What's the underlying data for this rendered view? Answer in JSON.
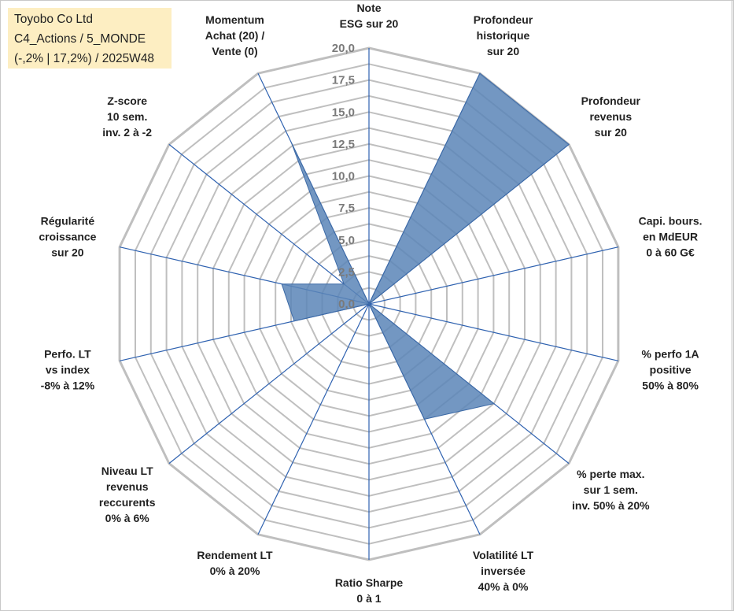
{
  "info": {
    "company": "Toyobo Co Ltd",
    "portfolio": "C4_Actions / 5_MONDE",
    "period": "(-,2% | 17,2%) / 2025W48"
  },
  "colors": {
    "fill": "#5b85b7",
    "stroke": "#3d6aa6",
    "grid": "#bfbfbf",
    "spoke": "#2f62b0",
    "info_bg": "#fdeec2"
  },
  "chart_data": {
    "type": "radar",
    "title": "",
    "rmin": 0,
    "rmax": 20,
    "ticks": [
      "0,0",
      "2,5",
      "5,0",
      "7,5",
      "10,0",
      "12,5",
      "15,0",
      "17,5",
      "20,0"
    ],
    "axes": [
      {
        "label": [
          "Note",
          "ESG sur 20"
        ],
        "value": 0
      },
      {
        "label": [
          "Profondeur",
          "historique",
          "sur 20"
        ],
        "value": 20
      },
      {
        "label": [
          "Profondeur",
          "revenus",
          "sur 20"
        ],
        "value": 20
      },
      {
        "label": [
          "Capi. bours.",
          "en MdEUR",
          "0 à 60 G€"
        ],
        "value": 0
      },
      {
        "label": [
          "% perfo 1A",
          "positive",
          "50% à 80%"
        ],
        "value": 0
      },
      {
        "label": [
          "% perte max.",
          "sur 1 sem.",
          "inv. 50% à 20%"
        ],
        "value": 12.5
      },
      {
        "label": [
          "Volatilité LT",
          "inversée",
          "40% à 0%"
        ],
        "value": 10
      },
      {
        "label": [
          "Ratio Sharpe",
          "0 à 1"
        ],
        "value": 0
      },
      {
        "label": [
          "Rendement LT",
          "0% à 20%"
        ],
        "value": 0
      },
      {
        "label": [
          "Niveau LT",
          "revenus",
          "reccurents",
          "0% à 6%"
        ],
        "value": 0
      },
      {
        "label": [
          "Perfo. LT",
          "vs index",
          "-8% à 12%"
        ],
        "value": 6
      },
      {
        "label": [
          "Régularité",
          "croissance",
          "sur 20"
        ],
        "value": 7
      },
      {
        "label": [
          "Z-score",
          "10 sem.",
          "inv. 2 à -2"
        ],
        "value": 2.5
      },
      {
        "label": [
          "Momentum",
          "Achat (20) /",
          "Vente (0)"
        ],
        "value": 14
      }
    ]
  }
}
